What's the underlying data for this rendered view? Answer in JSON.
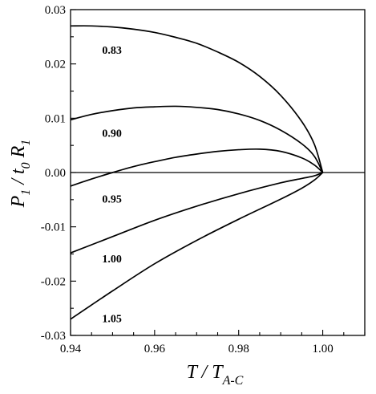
{
  "chart_data": {
    "type": "line",
    "title": "",
    "xlabel": {
      "main": "T / T",
      "sub": "A-C"
    },
    "ylabel": {
      "p": "P",
      "p_sub": "1",
      "mid": " / t",
      "t_sub": "0",
      "r": " R",
      "r_sub": "1"
    },
    "xlim": [
      0.94,
      1.01
    ],
    "ylim": [
      -0.03,
      0.03
    ],
    "xticks": [
      0.94,
      0.96,
      0.98,
      1.0
    ],
    "xtick_labels": [
      "0.94",
      "0.96",
      "0.98",
      "1.00"
    ],
    "yticks": [
      -0.03,
      -0.02,
      -0.01,
      0.0,
      0.01,
      0.02,
      0.03
    ],
    "ytick_labels": [
      "-0.03",
      "-0.02",
      "-0.01",
      "0.00",
      "0.01",
      "0.02",
      "0.03"
    ],
    "grid": false,
    "zero_line": 0,
    "series": [
      {
        "name": "0.83",
        "x": [
          0.94,
          0.945,
          0.95,
          0.955,
          0.96,
          0.965,
          0.97,
          0.975,
          0.98,
          0.985,
          0.99,
          0.995,
          0.998,
          1.0
        ],
        "y": [
          0.027,
          0.027,
          0.0268,
          0.0264,
          0.0258,
          0.0249,
          0.0238,
          0.0222,
          0.0203,
          0.0177,
          0.0142,
          0.0094,
          0.0052,
          0.0
        ]
      },
      {
        "name": "0.90",
        "x": [
          0.94,
          0.945,
          0.95,
          0.955,
          0.96,
          0.965,
          0.97,
          0.975,
          0.98,
          0.985,
          0.99,
          0.995,
          0.998,
          1.0
        ],
        "y": [
          0.0097,
          0.0107,
          0.0114,
          0.0119,
          0.0121,
          0.0122,
          0.012,
          0.0116,
          0.0108,
          0.0096,
          0.0078,
          0.0053,
          0.003,
          0.0
        ]
      },
      {
        "name": "0.95",
        "x": [
          0.94,
          0.945,
          0.95,
          0.955,
          0.96,
          0.965,
          0.97,
          0.975,
          0.98,
          0.985,
          0.99,
          0.995,
          0.998,
          1.0
        ],
        "y": [
          -0.0025,
          -0.0012,
          0.0,
          0.0011,
          0.002,
          0.0028,
          0.0034,
          0.0039,
          0.0042,
          0.0043,
          0.0039,
          0.0027,
          0.0014,
          0.0
        ]
      },
      {
        "name": "1.00",
        "x": [
          0.94,
          0.95,
          0.96,
          0.97,
          0.98,
          0.99,
          0.995,
          0.998,
          1.0
        ],
        "y": [
          -0.0148,
          -0.0118,
          -0.0088,
          -0.0062,
          -0.0039,
          -0.0019,
          -0.0011,
          -0.0006,
          0.0
        ]
      },
      {
        "name": "1.05",
        "x": [
          0.94,
          0.95,
          0.96,
          0.97,
          0.98,
          0.99,
          0.995,
          0.998,
          1.0
        ],
        "y": [
          -0.027,
          -0.0218,
          -0.0168,
          -0.0125,
          -0.0086,
          -0.0049,
          -0.0029,
          -0.0014,
          0.0
        ]
      }
    ],
    "annotations": [
      {
        "text": "0.83",
        "x": 0.9475,
        "y": 0.0226
      },
      {
        "text": "0.90",
        "x": 0.9475,
        "y": 0.0073
      },
      {
        "text": "0.95",
        "x": 0.9475,
        "y": -0.0048
      },
      {
        "text": "1.00",
        "x": 0.9475,
        "y": -0.0158
      },
      {
        "text": "1.05",
        "x": 0.9475,
        "y": -0.0268
      }
    ]
  }
}
